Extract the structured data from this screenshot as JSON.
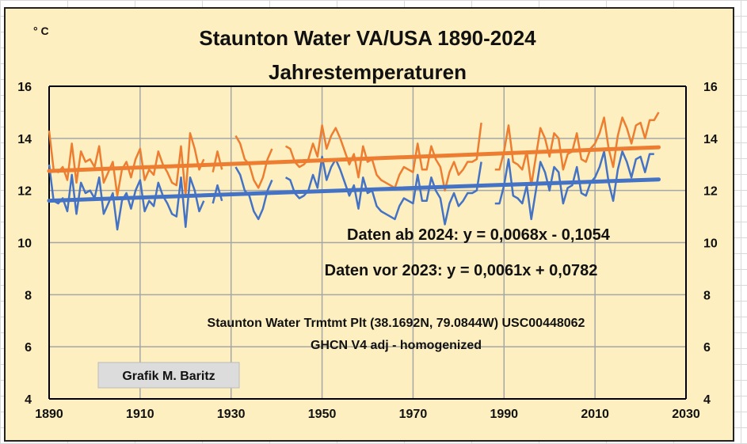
{
  "chart_data": {
    "type": "line",
    "title": "Staunton Water VA/USA 1890-2024",
    "subtitle": "Jahrestemperaturen",
    "ylabel": "° C",
    "xlim": [
      1890,
      2030
    ],
    "ylim": [
      4,
      16
    ],
    "xticks": [
      "1890",
      "1910",
      "1930",
      "1950",
      "1970",
      "1990",
      "2010",
      "2030"
    ],
    "yticks": [
      "4",
      "6",
      "8",
      "10",
      "12",
      "14",
      "16"
    ],
    "grid": true,
    "x_start": 1890,
    "series": [
      {
        "name": "Daten vor 2023",
        "color": "#4472c4",
        "values": [
          13.0,
          11.6,
          11.5,
          11.7,
          11.2,
          12.6,
          11.1,
          12.3,
          11.9,
          12.0,
          11.7,
          12.5,
          11.1,
          11.5,
          11.9,
          10.5,
          11.6,
          11.9,
          11.3,
          12.0,
          12.4,
          11.2,
          11.6,
          11.4,
          12.3,
          11.8,
          11.5,
          11.1,
          11.0,
          12.5,
          10.6,
          12.5,
          12.0,
          11.2,
          11.6,
          null,
          11.5,
          12.2,
          11.6,
          null,
          null,
          12.9,
          12.6,
          12.0,
          11.8,
          11.2,
          10.9,
          11.3,
          12.0,
          12.4,
          null,
          null,
          12.5,
          12.4,
          11.9,
          11.7,
          11.8,
          12.0,
          12.6,
          12.1,
          13.3,
          12.4,
          12.9,
          13.2,
          12.8,
          12.3,
          11.8,
          12.2,
          11.3,
          12.5,
          11.9,
          12.0,
          11.4,
          11.2,
          11.1,
          11.0,
          10.9,
          11.4,
          11.7,
          11.6,
          11.5,
          12.6,
          11.6,
          11.6,
          12.5,
          12.0,
          11.7,
          10.7,
          11.5,
          11.9,
          11.4,
          11.6,
          11.9,
          11.9,
          12.0,
          13.1,
          null,
          null,
          11.5,
          11.5,
          12.2,
          13.2,
          11.8,
          11.7,
          11.5,
          12.2,
          10.9,
          12.0,
          13.1,
          12.7,
          12.0,
          12.9,
          12.7,
          11.5,
          12.1,
          12.2,
          12.9,
          11.9,
          11.8,
          12.3,
          12.5,
          12.9,
          13.5,
          12.3,
          11.6,
          12.8,
          13.5,
          13.1,
          12.5,
          13.2,
          13.3,
          12.7,
          13.4,
          13.4
        ]
      },
      {
        "name": "Daten ab 2024",
        "color": "#ed7d31",
        "values": [
          14.3,
          12.8,
          12.7,
          12.9,
          12.4,
          13.8,
          12.3,
          13.5,
          13.1,
          13.2,
          12.9,
          13.7,
          12.3,
          12.7,
          13.1,
          11.8,
          12.8,
          13.1,
          12.5,
          13.2,
          13.6,
          12.4,
          12.8,
          12.6,
          13.5,
          13.0,
          12.7,
          12.3,
          12.2,
          13.7,
          11.8,
          14.2,
          13.6,
          12.8,
          13.2,
          null,
          12.7,
          13.5,
          12.8,
          null,
          null,
          14.1,
          13.8,
          13.2,
          13.0,
          12.4,
          12.1,
          12.5,
          13.2,
          13.6,
          null,
          null,
          13.7,
          13.6,
          13.1,
          12.9,
          13.0,
          13.2,
          13.8,
          13.3,
          14.5,
          13.6,
          14.1,
          14.4,
          14.0,
          13.5,
          13.0,
          13.4,
          12.5,
          13.7,
          13.1,
          13.2,
          12.6,
          12.4,
          12.3,
          12.2,
          12.1,
          12.6,
          12.9,
          12.8,
          12.7,
          13.8,
          12.8,
          12.8,
          13.7,
          13.2,
          12.9,
          12.0,
          12.7,
          13.1,
          12.6,
          12.8,
          13.1,
          13.1,
          13.2,
          14.6,
          null,
          null,
          12.8,
          12.8,
          13.5,
          14.5,
          13.1,
          13.0,
          12.8,
          13.5,
          12.2,
          13.3,
          14.4,
          14.0,
          13.3,
          14.2,
          14.0,
          12.8,
          13.4,
          13.5,
          14.2,
          13.2,
          13.1,
          13.6,
          13.8,
          14.2,
          14.8,
          13.6,
          12.9,
          14.1,
          14.8,
          14.4,
          13.8,
          14.5,
          14.6,
          14.0,
          14.7,
          14.7,
          15.0
        ]
      }
    ],
    "trendlines": [
      {
        "label": "Daten ab 2024: y = 0,0068x - 0,1054",
        "color": "#ed7d31",
        "slope": 0.0068,
        "intercept": -0.1054,
        "range": [
          1890,
          2024
        ]
      },
      {
        "label": "Daten vor 2023: y = 0,0061x + 0,0782",
        "color": "#4472c4",
        "slope": 0.0061,
        "intercept": 0.0782,
        "range": [
          1890,
          2024
        ]
      }
    ],
    "annotations": [
      "Staunton Water Trmtmt Plt (38.1692N, 79.0844W) USC00448062",
      "GHCN V4 adj - homogenized"
    ],
    "credit": "Grafik M. Baritz"
  }
}
